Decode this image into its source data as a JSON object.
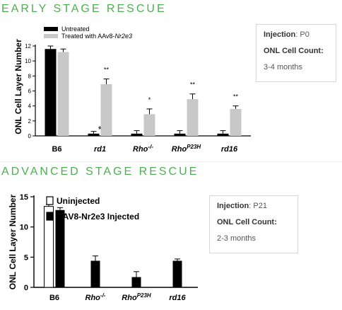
{
  "sections": [
    {
      "title": "EARLY STAGE RESCUE"
    },
    {
      "title": "ADVANCED STAGE RESCUE"
    }
  ],
  "info_boxes": [
    {
      "injection_label": "Injection",
      "injection_value": "P0",
      "count_label": "ONL Cell Count:",
      "count_value": "3-4 months"
    },
    {
      "injection_label": "Injection",
      "injection_value": "P21",
      "count_label": "ONL Cell Count:",
      "count_value": "2-3 months"
    }
  ],
  "colors": {
    "untreated": "#000000",
    "treated": "#c8c8c8",
    "injected_2": "#000000",
    "uninjected": "#ffffff",
    "title_green": "#4caf50"
  },
  "chart_data": [
    {
      "type": "bar",
      "ylabel": "ONL Cell Layer Number",
      "ylim": [
        0,
        12
      ],
      "yticks": [
        0,
        2,
        4,
        6,
        8,
        10,
        12
      ],
      "categories": [
        {
          "base": "B6",
          "sup": ""
        },
        {
          "base": "rd1",
          "sup": ""
        },
        {
          "base": "Rho",
          "sup": "-/-"
        },
        {
          "base": "Rho",
          "sup": "P23H"
        },
        {
          "base": "rd16",
          "sup": ""
        }
      ],
      "legend": [
        {
          "label": "Untreated"
        },
        {
          "label": "Treated with AAv8-",
          "label_italic": "Nr2e3"
        }
      ],
      "series": [
        {
          "name": "Untreated",
          "values": [
            11.6,
            0.3,
            0.3,
            0.3,
            0.3
          ],
          "errors": [
            0.4,
            0.3,
            0.4,
            0.4,
            0.4
          ]
        },
        {
          "name": "Treated with AAv8-Nr2e3",
          "values": [
            11.2,
            6.9,
            2.9,
            4.9,
            3.6
          ],
          "errors": [
            0.4,
            0.7,
            0.7,
            0.7,
            0.4
          ]
        }
      ],
      "significance": [
        "",
        "**",
        "*",
        "**",
        "**"
      ],
      "untreated_marks": [
        "",
        "*",
        "",
        "",
        ""
      ]
    },
    {
      "type": "bar",
      "ylabel": "ONL Cell Layer Number",
      "ylim": [
        0,
        15
      ],
      "yticks": [
        0,
        5,
        10,
        15
      ],
      "categories": [
        {
          "base": "B6",
          "sup": ""
        },
        {
          "base": "Rho",
          "sup": "-/-"
        },
        {
          "base": "Rho",
          "sup": "P23H"
        },
        {
          "base": "rd16",
          "sup": ""
        }
      ],
      "legend": [
        {
          "label": "Uninjected"
        },
        {
          "label": "AAV8-Nr2e3 Injected"
        }
      ],
      "series": [
        {
          "name": "Uninjected",
          "values": [
            13.4,
            null,
            null,
            null
          ],
          "errors": [
            0.3,
            null,
            null,
            null
          ]
        },
        {
          "name": "AAV8-Nr2e3 Injected",
          "values": [
            12.8,
            4.4,
            1.7,
            4.4
          ],
          "errors": [
            0.4,
            0.8,
            0.9,
            0.3
          ]
        }
      ]
    }
  ]
}
